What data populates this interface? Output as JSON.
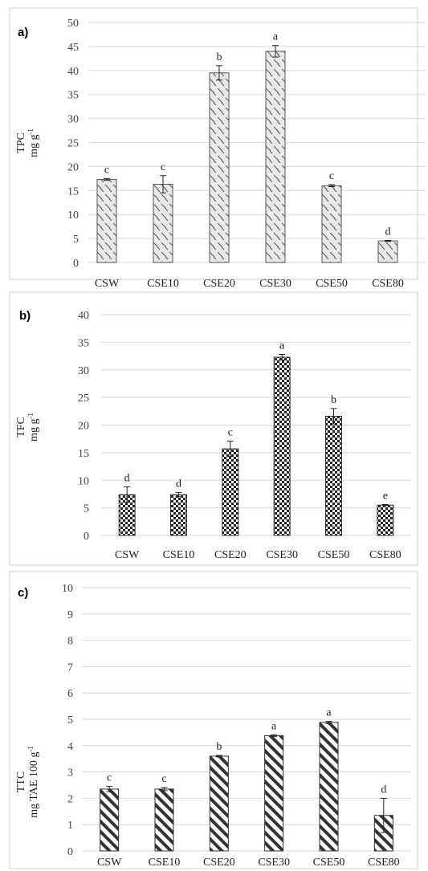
{
  "chart_data": [
    {
      "type": "bar",
      "panel_label": "a)",
      "ylabel_line1": "TPC",
      "ylabel_line2": "mg g",
      "ylabel_sup": "-1",
      "categories": [
        "CSW",
        "CSE10",
        "CSE20",
        "CSE30",
        "CSE50",
        "CSE80"
      ],
      "values": [
        17.3,
        16.3,
        39.5,
        44.0,
        16.0,
        4.5
      ],
      "errors": [
        0.2,
        1.8,
        1.5,
        1.2,
        0.2,
        0.1
      ],
      "significance": [
        "c",
        "c",
        "b",
        "a",
        "c",
        "d"
      ],
      "ylim": [
        0,
        50
      ],
      "yticks": [
        0,
        5,
        10,
        15,
        20,
        25,
        30,
        35,
        40,
        45,
        50
      ],
      "grid": true,
      "pattern": "diagonal-dash",
      "bar_fill": "#e8e8e8",
      "bar_stroke": "#555555"
    },
    {
      "type": "bar",
      "panel_label": "b)",
      "ylabel_line1": "TFC",
      "ylabel_line2": "mg g",
      "ylabel_sup": "-1",
      "categories": [
        "CSW",
        "CSE10",
        "CSE20",
        "CSE30",
        "CSE50",
        "CSE80"
      ],
      "values": [
        7.4,
        7.4,
        15.7,
        32.3,
        21.6,
        5.5
      ],
      "errors": [
        1.4,
        0.4,
        1.4,
        0.5,
        1.4,
        0.1
      ],
      "significance": [
        "d",
        "d",
        "c",
        "a",
        "b",
        "e"
      ],
      "ylim": [
        0,
        40
      ],
      "yticks": [
        0,
        5,
        10,
        15,
        20,
        25,
        30,
        35,
        40
      ],
      "grid": true,
      "pattern": "checker",
      "bar_fill": "#ffffff",
      "bar_stroke": "#333333"
    },
    {
      "type": "bar",
      "panel_label": "c)",
      "ylabel_line1": "TTC",
      "ylabel_line2": "mg  TAE 100 g",
      "ylabel_sup": "-1",
      "categories": [
        "CSW",
        "CSE10",
        "CSE20",
        "CSE30",
        "CSE50",
        "CSE80"
      ],
      "values": [
        2.35,
        2.35,
        3.6,
        4.38,
        4.88,
        1.35
      ],
      "errors": [
        0.1,
        0.06,
        0.03,
        0.03,
        0.04,
        0.65
      ],
      "significance": [
        "c",
        "c",
        "b",
        "a",
        "a",
        "d"
      ],
      "ylim": [
        0,
        10
      ],
      "yticks": [
        0,
        1,
        2,
        3,
        4,
        5,
        6,
        7,
        8,
        9,
        10
      ],
      "grid": true,
      "pattern": "thick-diagonal",
      "bar_fill": "#ffffff",
      "bar_stroke": "#333333"
    }
  ]
}
